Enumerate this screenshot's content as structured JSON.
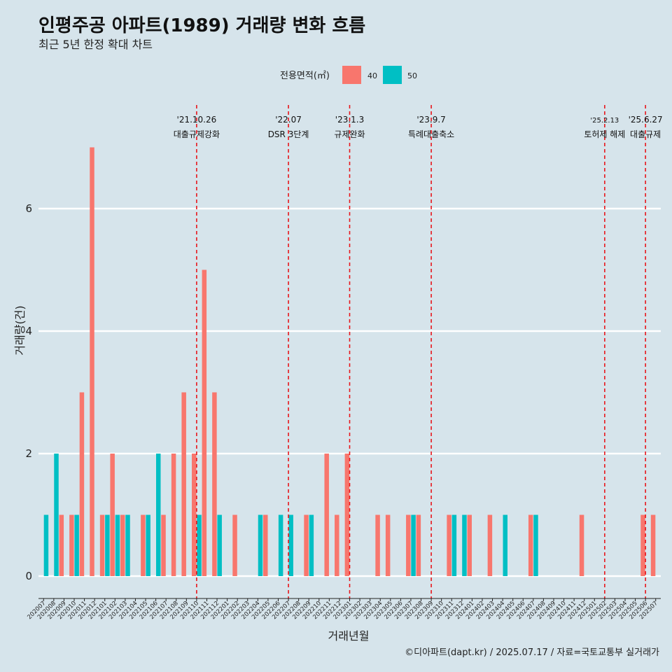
{
  "title": "인평주공 아파트(1989) 거래량 변화 흐름",
  "subtitle": "최근 5년 한정 확대 차트",
  "caption": "©디아파트(dapt.kr) / 2025.07.17 / 자료=국토교통부 실거래가",
  "colors": {
    "40": "#f8766d",
    "50": "#00bfc4",
    "vline": "#e8161b",
    "background": "#d6e4eb",
    "grid": "#ffffff"
  },
  "chart_data": {
    "type": "bar",
    "xlabel": "거래년월",
    "ylabel": "거래량(건)",
    "ylim": [
      -0.5,
      7.2
    ],
    "yticks": [
      0,
      2,
      4,
      6
    ],
    "grid": true,
    "legend": {
      "title": "전용면적(㎡)",
      "position": "top",
      "entries": [
        "40",
        "50"
      ]
    },
    "categories": [
      "202007",
      "202008",
      "202009",
      "202010",
      "202011",
      "202012",
      "202101",
      "202102",
      "202103",
      "202104",
      "202105",
      "202106",
      "202107",
      "202108",
      "202109",
      "202110",
      "202111",
      "202112",
      "202201",
      "202202",
      "202203",
      "202204",
      "202205",
      "202206",
      "202207",
      "202208",
      "202209",
      "202210",
      "202211",
      "202212",
      "202301",
      "202302",
      "202303",
      "202304",
      "202305",
      "202306",
      "202307",
      "202308",
      "202309",
      "202310",
      "202311",
      "202312",
      "202401",
      "202402",
      "202403",
      "202404",
      "202405",
      "202406",
      "202407",
      "202408",
      "202409",
      "202410",
      "202411",
      "202412",
      "202501",
      "202502",
      "202503",
      "202504",
      "202505",
      "202506",
      "202507"
    ],
    "series": [
      {
        "name": "40",
        "values": [
          0,
          0,
          1,
          1,
          3,
          7,
          1,
          2,
          1,
          0,
          1,
          0,
          1,
          2,
          3,
          2,
          5,
          3,
          0,
          1,
          0,
          0,
          1,
          0,
          0,
          0,
          1,
          0,
          2,
          1,
          2,
          0,
          0,
          1,
          1,
          0,
          1,
          1,
          0,
          0,
          1,
          0,
          1,
          0,
          1,
          0,
          0,
          0,
          1,
          0,
          0,
          0,
          0,
          1,
          0,
          0,
          0,
          0,
          0,
          1,
          1
        ]
      },
      {
        "name": "50",
        "values": [
          1,
          2,
          0,
          1,
          0,
          0,
          1,
          1,
          1,
          0,
          1,
          2,
          0,
          0,
          0,
          1,
          0,
          1,
          0,
          0,
          0,
          1,
          0,
          1,
          1,
          0,
          1,
          0,
          0,
          0,
          0,
          0,
          0,
          0,
          0,
          0,
          1,
          0,
          0,
          0,
          1,
          1,
          0,
          0,
          0,
          1,
          0,
          0,
          1,
          0,
          0,
          0,
          0,
          0,
          0,
          0,
          0,
          0,
          0,
          0,
          0
        ]
      }
    ],
    "annotations": [
      {
        "x": "202110",
        "date": "'21.10.26",
        "label": "대출규제강화",
        "small": false
      },
      {
        "x": "202207",
        "date": "'22.07",
        "label": "DSR 3단계",
        "small": false
      },
      {
        "x": "202301",
        "date": "'23.1.3",
        "label": "규제완화",
        "small": false
      },
      {
        "x": "202309",
        "date": "'23.9.7",
        "label": "특례대출축소",
        "small": false
      },
      {
        "x": "202502",
        "date": "'25.2.13",
        "label": "토허제 해제",
        "small": true
      },
      {
        "x": "202506",
        "date": "'25.6.27",
        "label": "대출규제",
        "small": false
      }
    ]
  }
}
